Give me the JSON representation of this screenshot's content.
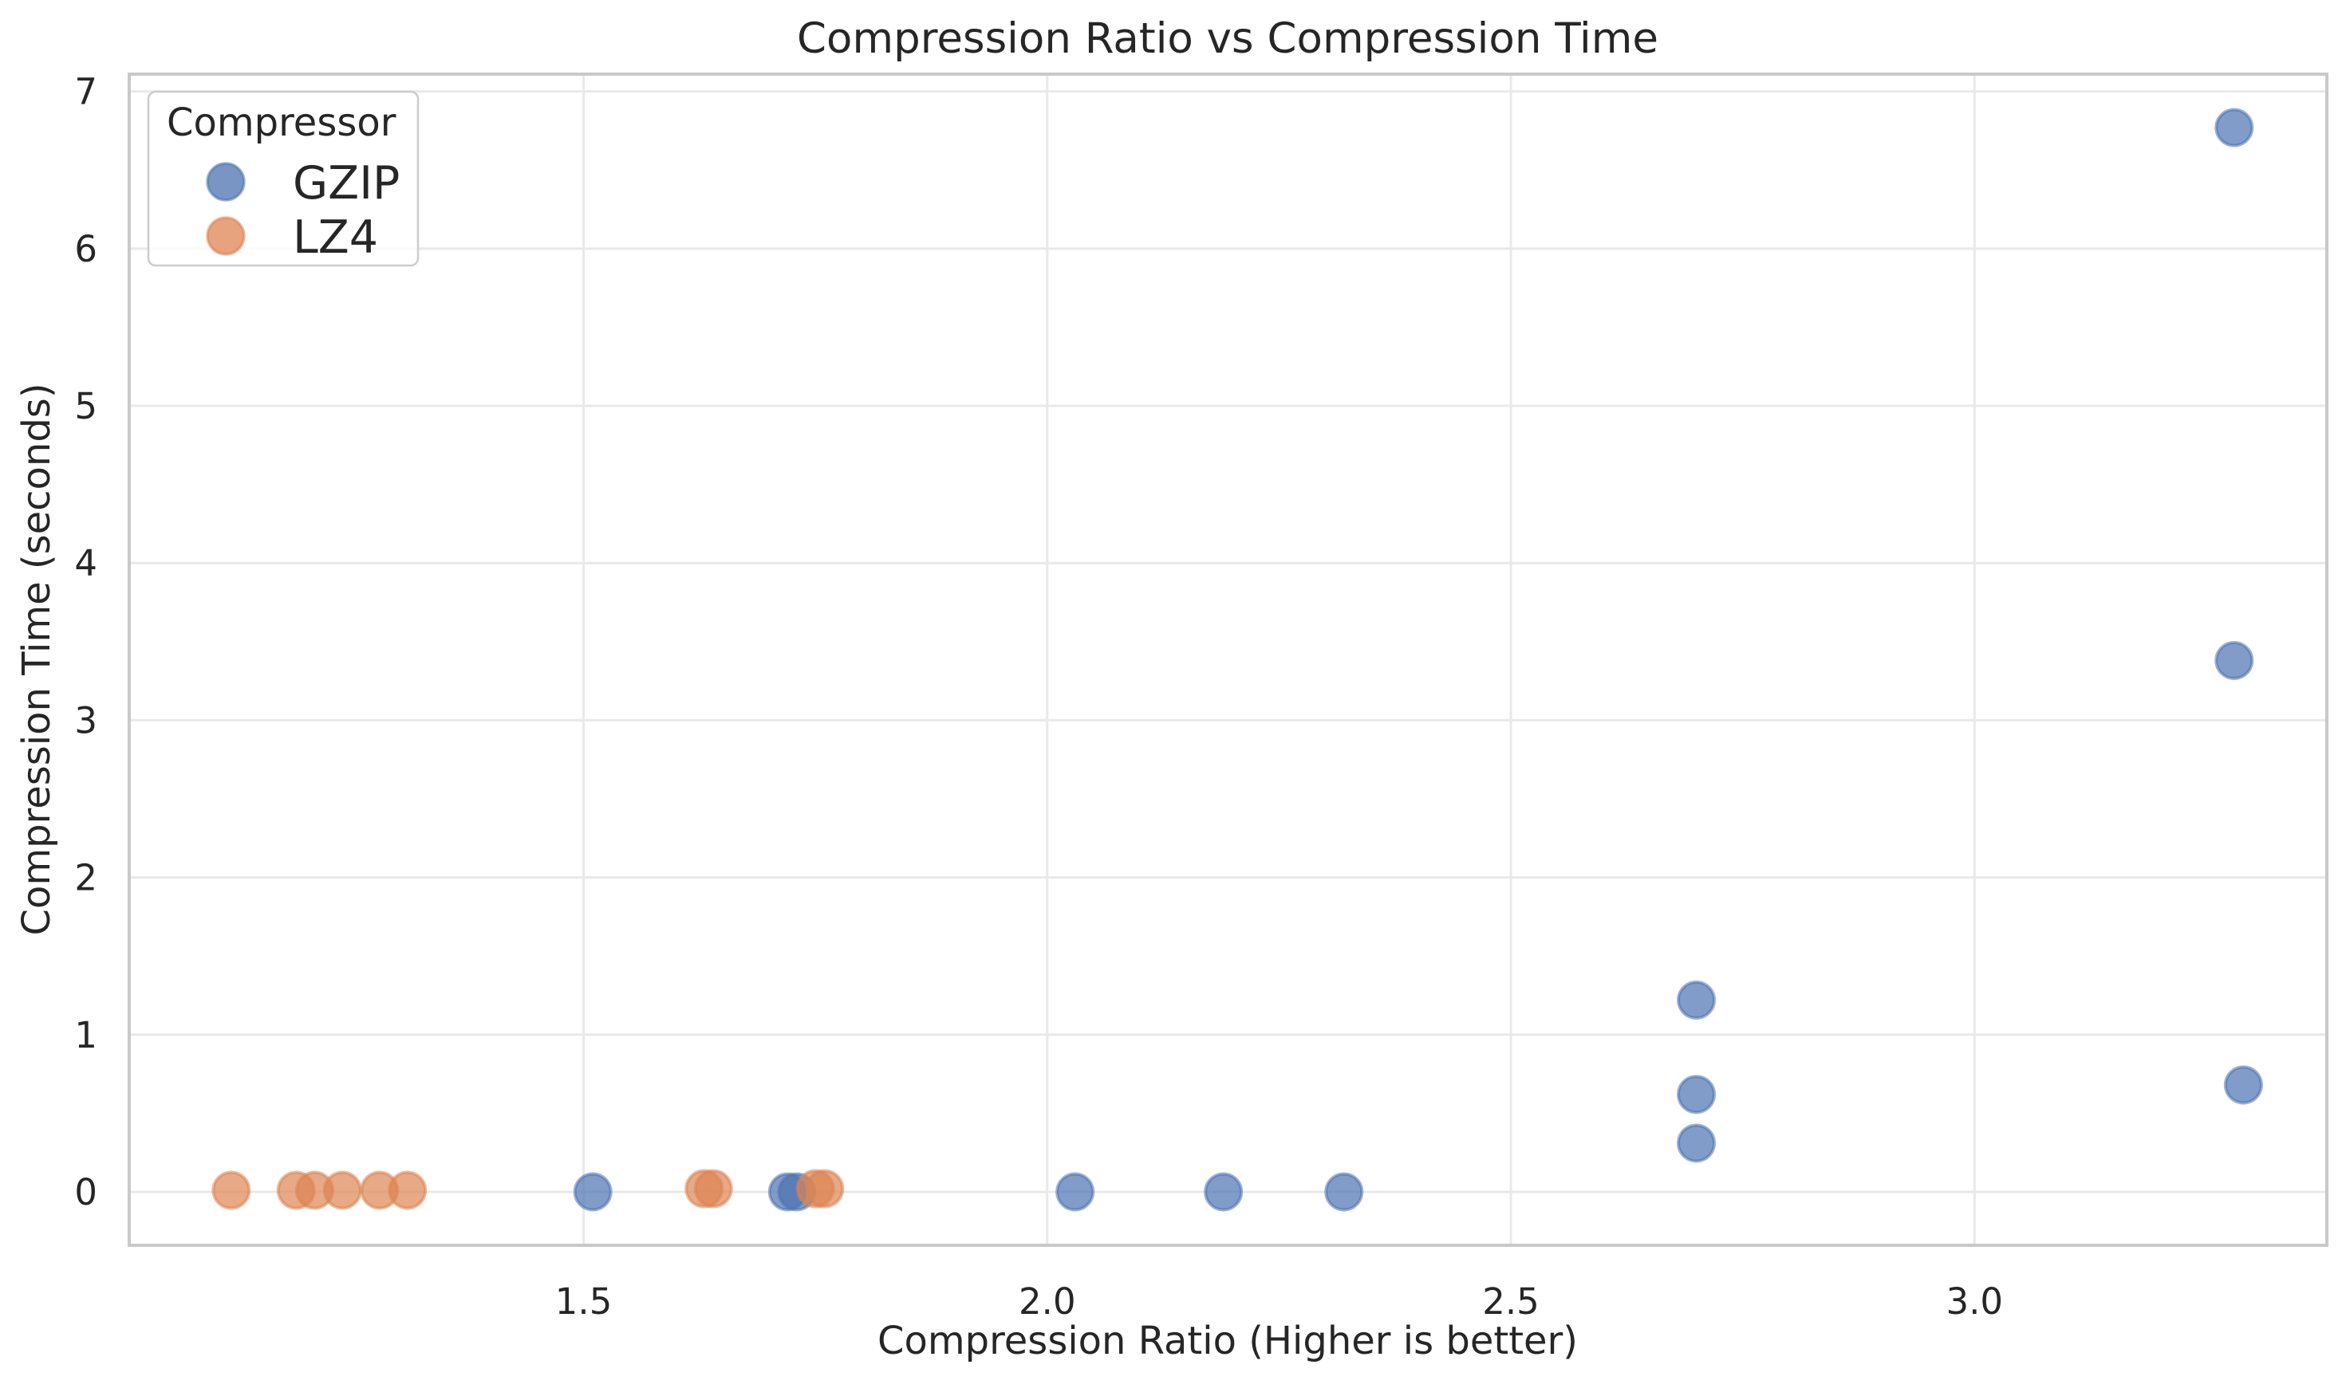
{
  "chart_data": {
    "type": "scatter",
    "title": "Compression Ratio vs Compression Time",
    "xlabel": "Compression Ratio (Higher is better)",
    "ylabel": "Compression Time (seconds)",
    "xlim": [
      1.01,
      3.38
    ],
    "ylim": [
      -0.34,
      7.11
    ],
    "x_tick_values": [
      1.5,
      2.0,
      2.5,
      3.0
    ],
    "x_tick_labels": [
      "1.5",
      "2.0",
      "2.5",
      "3.0"
    ],
    "y_tick_values": [
      0,
      1,
      2,
      3,
      4,
      5,
      6,
      7
    ],
    "y_tick_labels": [
      "0",
      "1",
      "2",
      "3",
      "4",
      "5",
      "6",
      "7"
    ],
    "grid": true,
    "legend": {
      "title": "Compressor",
      "position": "upper-left",
      "entries": [
        "GZIP",
        "LZ4"
      ]
    },
    "series": [
      {
        "name": "GZIP",
        "color": "#4C72B0",
        "points": [
          [
            1.51,
            0.0
          ],
          [
            1.72,
            0.0
          ],
          [
            1.73,
            0.0
          ],
          [
            2.03,
            0.0
          ],
          [
            2.19,
            0.0
          ],
          [
            2.32,
            0.0
          ],
          [
            2.7,
            0.31
          ],
          [
            2.7,
            0.62
          ],
          [
            2.7,
            1.22
          ],
          [
            3.29,
            0.68
          ],
          [
            3.28,
            3.38
          ],
          [
            3.28,
            6.77
          ]
        ]
      },
      {
        "name": "LZ4",
        "color": "#DD8452",
        "points": [
          [
            1.12,
            0.01
          ],
          [
            1.19,
            0.01
          ],
          [
            1.21,
            0.01
          ],
          [
            1.24,
            0.01
          ],
          [
            1.28,
            0.01
          ],
          [
            1.31,
            0.01
          ],
          [
            1.63,
            0.02
          ],
          [
            1.64,
            0.02
          ],
          [
            1.75,
            0.02
          ],
          [
            1.76,
            0.02
          ]
        ]
      }
    ],
    "marker": {
      "radius": 22.5,
      "alpha": 0.7
    },
    "colors": {
      "grid": "#e9e9e9",
      "spine": "#c9c9c9",
      "text": "#262626",
      "legend_border": "#cccccc",
      "background": "#ffffff"
    }
  }
}
